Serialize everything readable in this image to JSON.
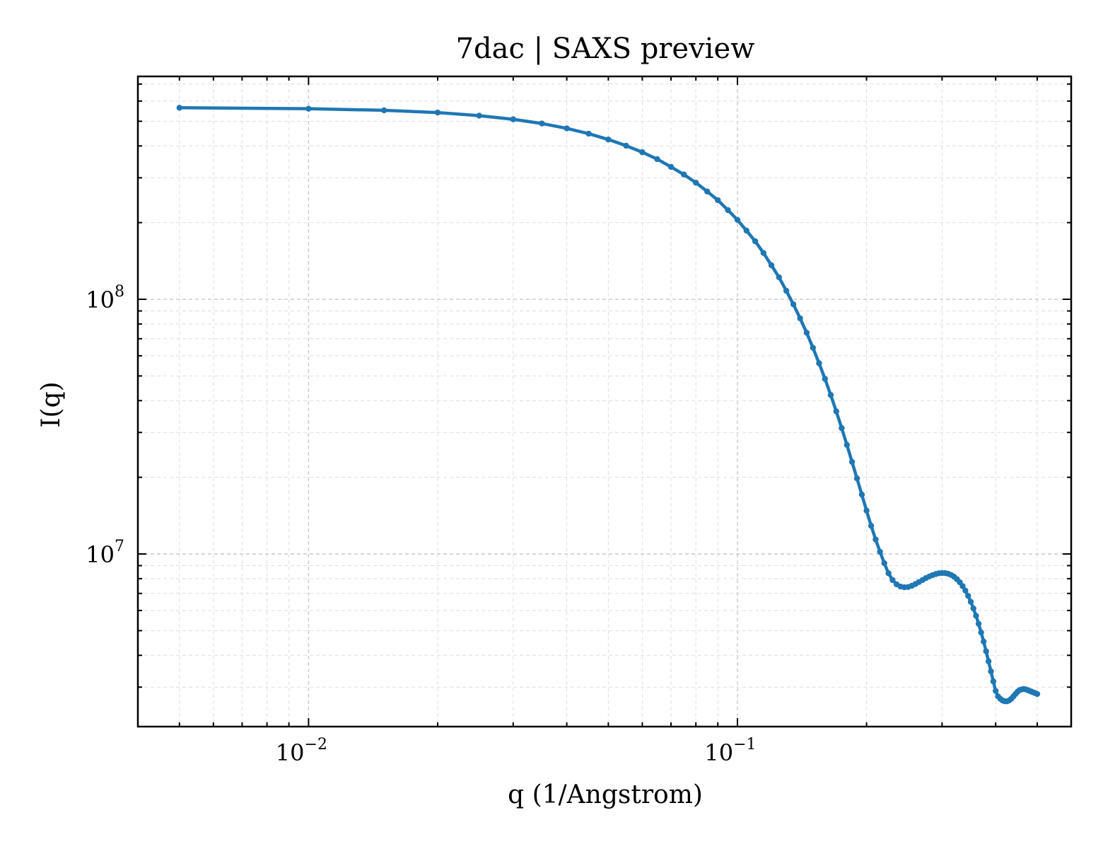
{
  "chart_data": {
    "type": "line",
    "title": "7dac | SAXS preview",
    "xlabel": "q (1/Angstrom)",
    "ylabel": "I(q)",
    "xscale": "log",
    "yscale": "log",
    "xlim": [
      0.004,
      0.6
    ],
    "ylim": [
      2100000,
      750000000
    ],
    "grid": true,
    "grid_style": "dashed, major and minor",
    "color": "#1f77b4",
    "marker": "circle",
    "x_tick_labels": [
      {
        "base": "10",
        "exp": "−2",
        "value": 0.01
      },
      {
        "base": "10",
        "exp": "−1",
        "value": 0.1
      }
    ],
    "y_tick_labels": [
      {
        "base": "10",
        "exp": "7",
        "value": 10000000
      },
      {
        "base": "10",
        "exp": "8",
        "value": 100000000
      }
    ],
    "series": [
      {
        "x": [
          0.005,
          0.01,
          0.015,
          0.02,
          0.025,
          0.03,
          0.035,
          0.04,
          0.045,
          0.05,
          0.055,
          0.06,
          0.065,
          0.07,
          0.075,
          0.08,
          0.085,
          0.09,
          0.095,
          0.1,
          0.105,
          0.11,
          0.115,
          0.12,
          0.125,
          0.13,
          0.135,
          0.14,
          0.145,
          0.15,
          0.155,
          0.16,
          0.165,
          0.17,
          0.175,
          0.18,
          0.185,
          0.19,
          0.195,
          0.2,
          0.205,
          0.21,
          0.215,
          0.22,
          0.225,
          0.23,
          0.235,
          0.24,
          0.245,
          0.25,
          0.255,
          0.26,
          0.265,
          0.27,
          0.275,
          0.28,
          0.285,
          0.29,
          0.295,
          0.3,
          0.305,
          0.31,
          0.315,
          0.32,
          0.325,
          0.33,
          0.335,
          0.34,
          0.345,
          0.35,
          0.355,
          0.36,
          0.365,
          0.37,
          0.375,
          0.38,
          0.385,
          0.39,
          0.395,
          0.4,
          0.405,
          0.41,
          0.415,
          0.42,
          0.425,
          0.43,
          0.435,
          0.44,
          0.445,
          0.45,
          0.455,
          0.46,
          0.465,
          0.47,
          0.475,
          0.48,
          0.485,
          0.49,
          0.495,
          0.5
        ],
        "y": [
          565000000,
          560000000,
          552000000,
          541000000,
          526000000,
          509000000,
          490000000,
          469000000,
          447000000,
          424000000,
          401000000,
          378000000,
          355000000,
          331000000,
          309000000,
          287000000,
          265000000,
          245000000,
          224000000,
          205000000,
          186000000,
          169000000,
          152000000,
          136000000,
          122000000,
          108000000,
          95600000,
          84200000,
          73900000,
          64500000,
          56100000,
          48700000,
          42100000,
          36300000,
          31200000,
          26800000,
          23000000,
          19800000,
          17100000,
          14800000,
          12900000,
          11400000,
          10200000,
          9200000,
          8400000,
          7900000,
          7600000,
          7450000,
          7400000,
          7420000,
          7500000,
          7620000,
          7760000,
          7900000,
          8040000,
          8160000,
          8260000,
          8340000,
          8400000,
          8420000,
          8410000,
          8360000,
          8270000,
          8140000,
          7960000,
          7740000,
          7480000,
          7180000,
          6850000,
          6490000,
          6110000,
          5720000,
          5320000,
          4920000,
          4530000,
          4150000,
          3790000,
          3460000,
          3160000,
          2900000,
          2760000,
          2700000,
          2660000,
          2640000,
          2640000,
          2660000,
          2700000,
          2760000,
          2820000,
          2880000,
          2920000,
          2940000,
          2950000,
          2940000,
          2920000,
          2900000,
          2880000,
          2860000,
          2840000,
          2820000
        ]
      }
    ]
  }
}
